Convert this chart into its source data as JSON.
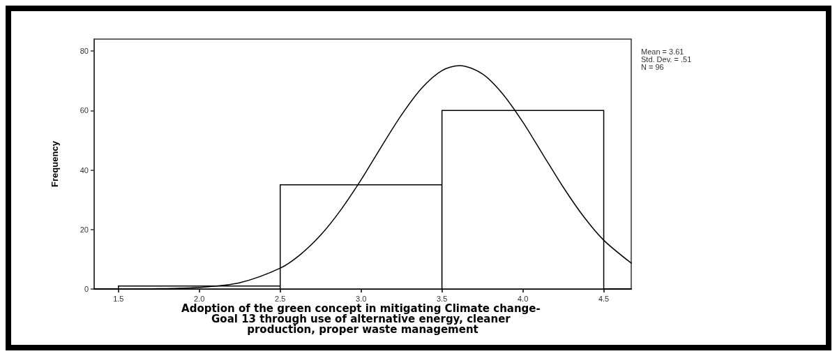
{
  "chart_data": {
    "type": "histogram",
    "xlabel": "Adoption of the green concept in mitigating Climate change- Goal 13 through use of alternative energy, cleaner production, proper waste management",
    "ylabel": "Frequency",
    "bins": [
      1.5,
      2.5,
      3.5,
      4.5
    ],
    "values": [
      1,
      35,
      60
    ],
    "color": "#ffffff",
    "series": [
      {
        "type": "line",
        "color": "#000000",
        "x": [
          1.5,
          1.75,
          2.0,
          2.25,
          2.5,
          2.625,
          2.75,
          2.875,
          3.0,
          3.125,
          3.25,
          3.375,
          3.5,
          3.61,
          3.75,
          3.875,
          4.0,
          4.125,
          4.25,
          4.375,
          4.5,
          4.67
        ],
        "values": [
          0,
          0.1,
          0.5,
          2.1,
          7.0,
          11.6,
          18.1,
          26.6,
          36.7,
          47.8,
          58.5,
          67.5,
          73.4,
          75.1,
          72.3,
          65.6,
          56.1,
          45.1,
          34.2,
          24.4,
          16.4,
          8.7
        ]
      }
    ],
    "xlim": [
      1.35,
      4.67
    ],
    "ylim": [
      0,
      84
    ],
    "xticks": [
      1.5,
      {
        "value": 2,
        "label": "2.0"
      },
      2.5,
      {
        "value": 3,
        "label": "3.0"
      },
      3.5,
      {
        "value": 4,
        "label": "4.0"
      },
      4.5
    ],
    "yticks": [
      0,
      20,
      40,
      60,
      80
    ],
    "grid": false,
    "marker": "none",
    "line_style": "solid",
    "annotations": [
      "Mean = 3.61",
      "Std. Dev. = .51",
      "N = 96"
    ]
  }
}
